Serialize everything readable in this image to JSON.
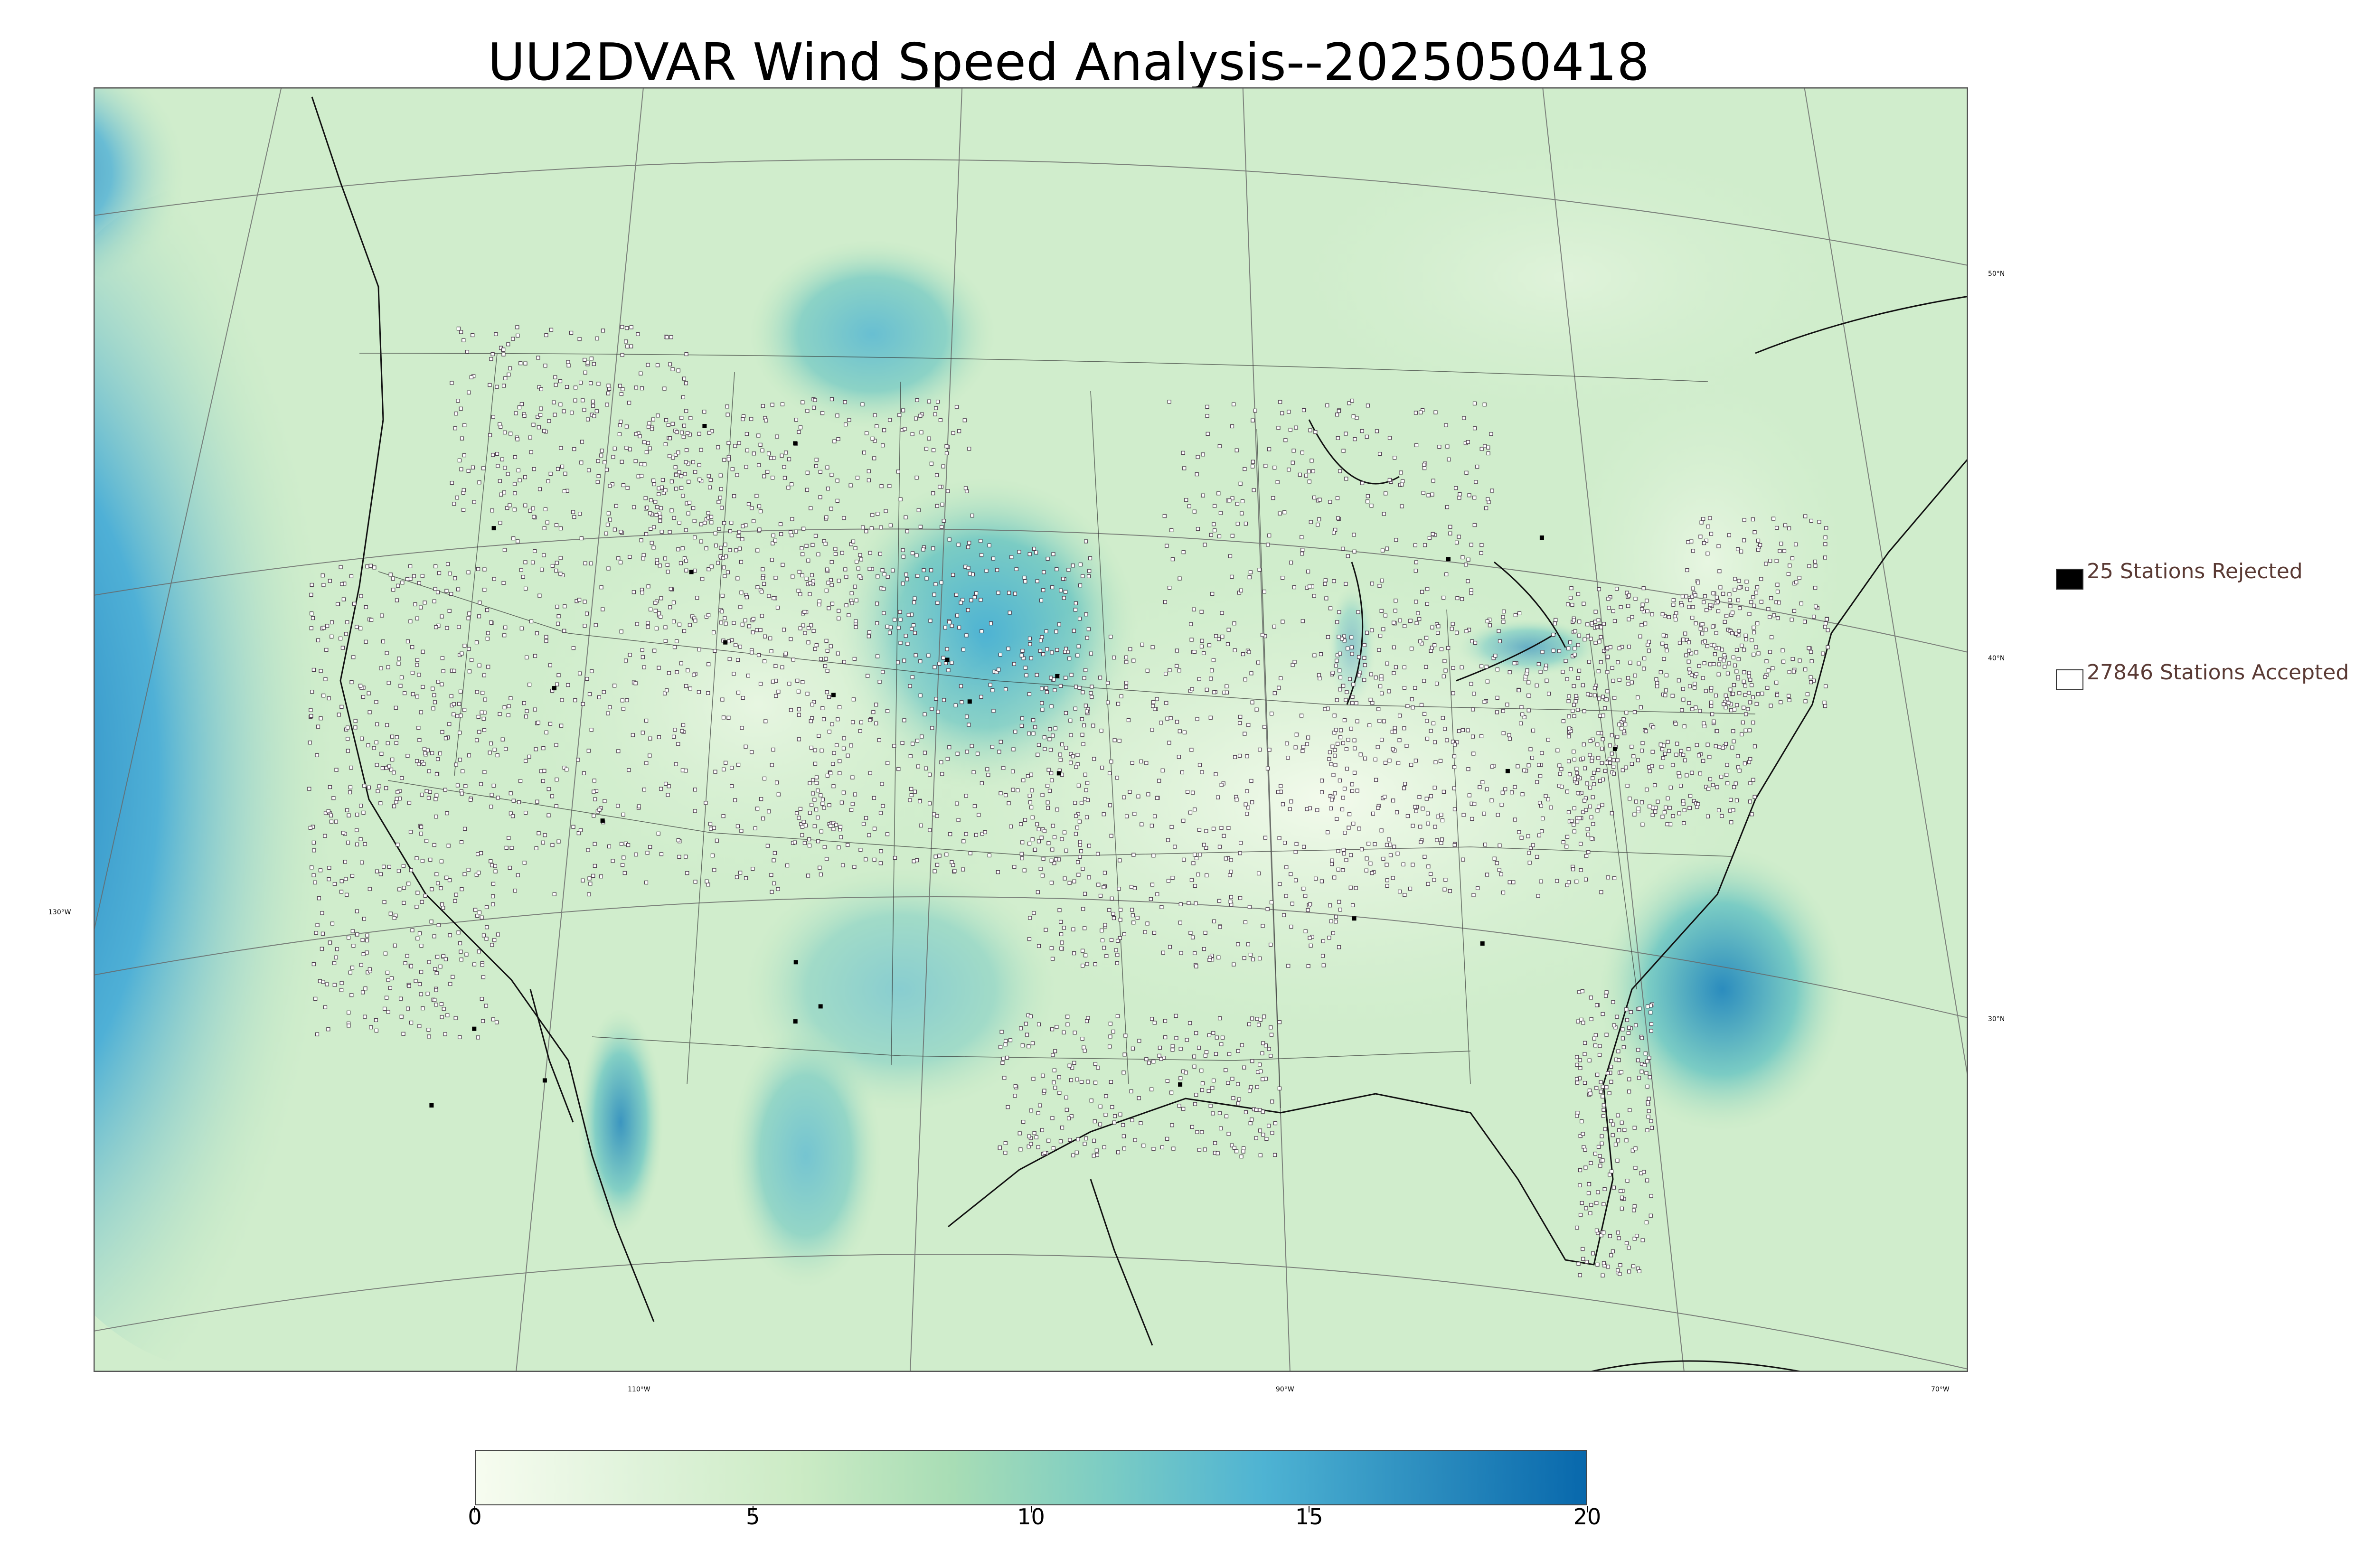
{
  "title": "UU2DVAR Wind Speed Analysis--2025050418",
  "map": {
    "lat_labels": [
      "50°N",
      "40°N",
      "30°N"
    ],
    "lon_labels": [
      "130°W",
      "110°W",
      "90°W",
      "70°W"
    ],
    "colors": {
      "ocean_high": "#2b8cbe",
      "ocean_mid": "#5ab4cc",
      "land_low": "#e8f6e3",
      "land_mid": "#bfe6c0",
      "station_outline": "#4a3a4a",
      "rejected": "#000000"
    }
  },
  "legend": {
    "rejected_label": "25 Stations Rejected",
    "accepted_label": "27846 Stations Accepted",
    "rejected_color": "#000000",
    "accepted_color": "#ffffff"
  },
  "colorbar": {
    "min": 0,
    "max": 20,
    "ticks": [
      "0",
      "5",
      "10",
      "15",
      "20"
    ],
    "colors": [
      "#f7fcf0",
      "#e0f3db",
      "#ccebc5",
      "#a8ddb5",
      "#7bccc4",
      "#4eb3d3",
      "#2b8cbe",
      "#0868ac"
    ]
  }
}
